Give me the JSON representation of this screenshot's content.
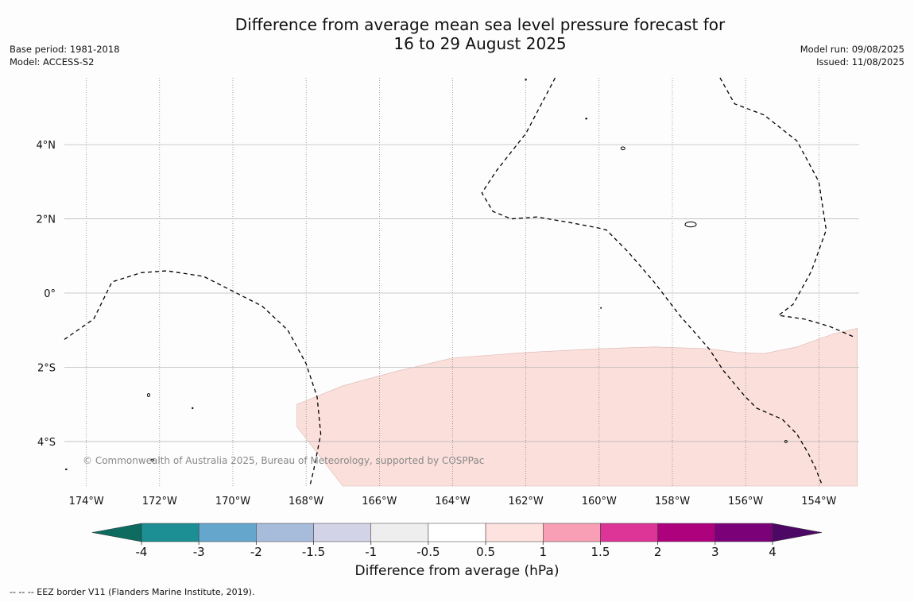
{
  "title_line1": "Difference from average mean sea level pressure forecast for",
  "title_line2": "16 to 29 August 2025",
  "meta_left": {
    "base_period": "Base period: 1981-2018",
    "model": "Model: ACCESS-S2"
  },
  "meta_right": {
    "model_run": "Model run: 09/08/2025",
    "issued": "Issued: 11/08/2025"
  },
  "map": {
    "lon_range": [
      -174.6,
      -152.9
    ],
    "lat_range": [
      -5.2,
      5.8
    ],
    "lon_ticks": [
      -174,
      -172,
      -170,
      -168,
      -166,
      -164,
      -162,
      -160,
      -158,
      -156,
      -154
    ],
    "lon_labels": [
      "174°W",
      "172°W",
      "170°W",
      "168°W",
      "166°W",
      "164°W",
      "162°W",
      "160°W",
      "158°W",
      "156°W",
      "154°W"
    ],
    "lat_ticks": [
      4,
      2,
      0,
      -2,
      -4
    ],
    "lat_labels": [
      "4°N",
      "2°N",
      "0°",
      "2°S",
      "4°S"
    ],
    "anomaly_region": {
      "category": "0.5 to 1",
      "color": "#fbdfdb",
      "coords": [
        [
          -168.25,
          -3.0
        ],
        [
          -167.0,
          -2.5
        ],
        [
          -165.5,
          -2.1
        ],
        [
          -164.0,
          -1.75
        ],
        [
          -162.0,
          -1.6
        ],
        [
          -160.0,
          -1.5
        ],
        [
          -158.5,
          -1.45
        ],
        [
          -157.0,
          -1.5
        ],
        [
          -156.25,
          -1.6
        ],
        [
          -155.5,
          -1.63
        ],
        [
          -154.6,
          -1.45
        ],
        [
          -153.6,
          -1.1
        ],
        [
          -152.95,
          -0.95
        ],
        [
          -152.95,
          -5.2
        ],
        [
          -167.0,
          -5.2
        ],
        [
          -168.25,
          -3.6
        ]
      ]
    },
    "eez_lines": [
      [
        [
          -174.6,
          -1.25
        ],
        [
          -173.8,
          -0.7
        ],
        [
          -173.3,
          0.3
        ],
        [
          -172.5,
          0.55
        ],
        [
          -171.8,
          0.6
        ],
        [
          -170.8,
          0.45
        ],
        [
          -170.0,
          0.05
        ],
        [
          -169.2,
          -0.35
        ],
        [
          -168.5,
          -1.0
        ],
        [
          -168.0,
          -1.9
        ],
        [
          -167.7,
          -2.8
        ],
        [
          -167.6,
          -3.8
        ],
        [
          -167.8,
          -4.8
        ],
        [
          -167.9,
          -5.2
        ]
      ],
      [
        [
          -161.2,
          5.8
        ],
        [
          -162.0,
          4.3
        ],
        [
          -162.8,
          3.3
        ],
        [
          -163.2,
          2.7
        ],
        [
          -162.9,
          2.2
        ],
        [
          -162.4,
          2.0
        ],
        [
          -161.7,
          2.05
        ],
        [
          -160.8,
          1.9
        ],
        [
          -160.0,
          1.75
        ],
        [
          -159.8,
          1.7
        ],
        [
          -159.2,
          1.1
        ],
        [
          -158.5,
          0.3
        ],
        [
          -157.8,
          -0.6
        ],
        [
          -157.0,
          -1.5
        ],
        [
          -156.6,
          -2.1
        ],
        [
          -156.0,
          -2.8
        ],
        [
          -155.7,
          -3.1
        ],
        [
          -155.0,
          -3.4
        ],
        [
          -154.6,
          -3.8
        ],
        [
          -154.3,
          -4.3
        ],
        [
          -154.1,
          -4.7
        ],
        [
          -153.9,
          -5.2
        ]
      ],
      [
        [
          -156.7,
          5.8
        ],
        [
          -156.3,
          5.1
        ],
        [
          -155.5,
          4.8
        ],
        [
          -154.6,
          4.1
        ],
        [
          -154.0,
          3.0
        ],
        [
          -153.8,
          1.7
        ],
        [
          -154.2,
          0.6
        ],
        [
          -154.7,
          -0.3
        ],
        [
          -155.1,
          -0.6
        ],
        [
          -154.4,
          -0.7
        ],
        [
          -153.7,
          -0.9
        ],
        [
          -153.0,
          -1.2
        ]
      ]
    ],
    "islands": [
      {
        "name": "baker-island",
        "lon": -172.3,
        "lat": -2.75,
        "rx": 1.5,
        "ry": 2
      },
      {
        "name": "small-island",
        "lon": -171.1,
        "lat": -3.1,
        "rx": 0.7,
        "ry": 0.7
      },
      {
        "name": "small-island",
        "lon": -172.2,
        "lat": -4.5,
        "rx": 1.8,
        "ry": 1.2
      },
      {
        "name": "small-island",
        "lon": -174.55,
        "lat": -4.75,
        "rx": 0.8,
        "ry": 0.6
      },
      {
        "name": "small-island",
        "lon": -162.0,
        "lat": 5.75,
        "rx": 0.8,
        "ry": 0.6
      },
      {
        "name": "small-island",
        "lon": -160.35,
        "lat": 4.7,
        "rx": 0.9,
        "ry": 0.6
      },
      {
        "name": "palmyra-atoll",
        "lon": -159.35,
        "lat": 3.9,
        "rx": 2.5,
        "ry": 1.8
      },
      {
        "name": "kiritimati-island",
        "lon": -157.5,
        "lat": 1.85,
        "rx": 7,
        "ry": 3.2
      },
      {
        "name": "small-island",
        "lon": -159.95,
        "lat": -0.4,
        "rx": 0.5,
        "ry": 0.5
      },
      {
        "name": "small-island",
        "lon": -154.9,
        "lat": -4.0,
        "rx": 1.5,
        "ry": 1.3
      }
    ],
    "copyright": "© Commonwealth of Australia 2025, Bureau of Meteorology, supported by COSPPac"
  },
  "colorbar": {
    "low_arrow_color": "#0d6b5f",
    "high_arrow_color": "#4d0865",
    "bins": [
      {
        "from": "-4",
        "to": "-3",
        "color": "#1b8f94"
      },
      {
        "from": "-3",
        "to": "-2",
        "color": "#65a6cd"
      },
      {
        "from": "-2",
        "to": "-1.5",
        "color": "#a7bbdb"
      },
      {
        "from": "-1.5",
        "to": "-1",
        "color": "#d3d3e8"
      },
      {
        "from": "-1",
        "to": "-0.5",
        "color": "#eeeeee"
      },
      {
        "from": "-0.5",
        "to": "0.5",
        "color": "#ffffff"
      },
      {
        "from": "0.5",
        "to": "1",
        "color": "#fde2df"
      },
      {
        "from": "1",
        "to": "1.5",
        "color": "#f89fb5"
      },
      {
        "from": "1.5",
        "to": "2",
        "color": "#dd3497"
      },
      {
        "from": "2",
        "to": "3",
        "color": "#ae017e"
      },
      {
        "from": "3",
        "to": "4",
        "color": "#7a0177"
      }
    ],
    "tick_labels": [
      "-4",
      "-3",
      "-2",
      "-1.5",
      "-1",
      "-0.5",
      "0.5",
      "1",
      "1.5",
      "2",
      "3",
      "4"
    ],
    "label": "Difference from average (hPa)"
  },
  "footnote": "--  --  -- EEZ border V11 (Flanders Marine Institute, 2019)."
}
